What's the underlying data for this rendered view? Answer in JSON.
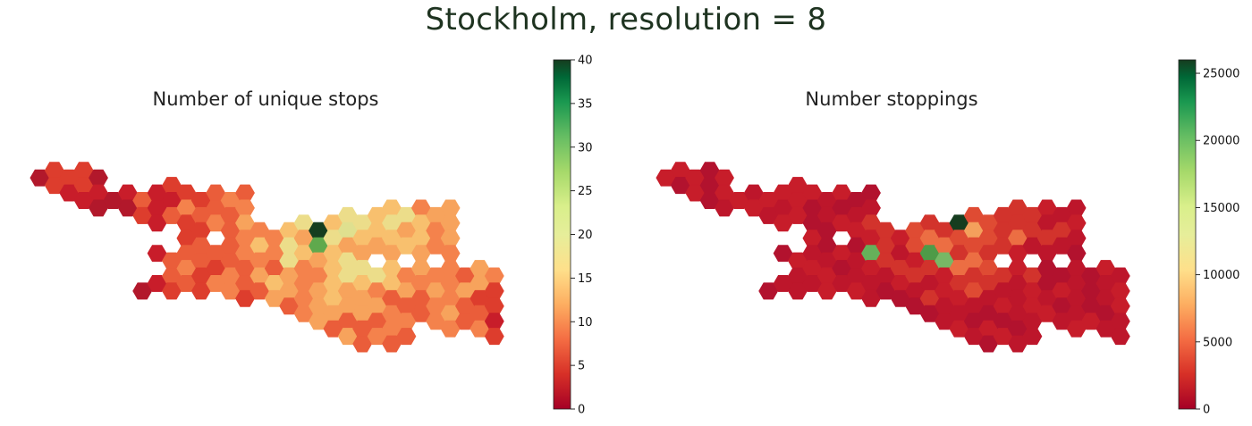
{
  "figure": {
    "title": "Stockholm, resolution = 8"
  },
  "colors": {
    "cmap": [
      "#a50026",
      "#d73027",
      "#f46d43",
      "#fdae61",
      "#fee08b",
      "#d9ef8b",
      "#a6d96a",
      "#66bd63",
      "#1a9850",
      "#006837",
      "#163d1f"
    ]
  },
  "chart_data": [
    {
      "type": "heatmap",
      "title": "Number of unique stops",
      "colorbar": {
        "min": 0,
        "max": 40,
        "ticks": [
          "0",
          "5",
          "10",
          "15",
          "20",
          "25",
          "30",
          "35",
          "40"
        ]
      },
      "colors": [
        "#b2182b",
        "#c81d2a",
        "#dd3d2d",
        "#ea5d3a",
        "#f4824c",
        "#f7a35c",
        "#f8c06e",
        "#ecdd8a",
        "#dfe08f"
      ],
      "dark_cells": [
        [
          20,
          11,
          "#163d1f"
        ],
        [
          20,
          12,
          "#5fa94d"
        ]
      ]
    },
    {
      "type": "heatmap",
      "title": "Number stoppings",
      "colorbar": {
        "min": 0,
        "max": 26000,
        "ticks": [
          "0",
          "5000",
          "10000",
          "15000",
          "20000",
          "25000"
        ]
      },
      "colors": [
        "#b2122e",
        "#bd162b",
        "#c71d2a",
        "#d2332c",
        "#df4b33",
        "#ec6e43",
        "#f4a05c",
        "#e2e08e"
      ],
      "dark_cells": [
        [
          21,
          10,
          "#163d1f"
        ],
        [
          15,
          12,
          "#66b05a"
        ],
        [
          20,
          13,
          "#77b865"
        ],
        [
          19,
          12,
          "#4e9b48"
        ]
      ]
    }
  ]
}
